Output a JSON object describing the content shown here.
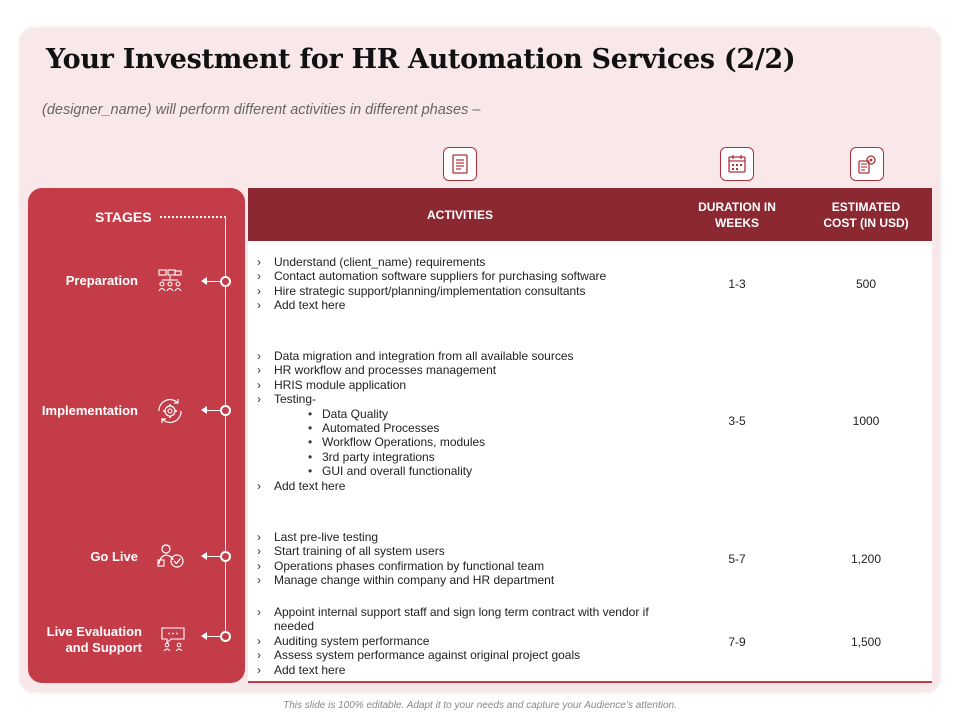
{
  "slide": {
    "title": "Your Investment for HR Automation Services (2/2)",
    "subtitle": "(designer_name) will perform different activities in different phases –",
    "footer": "This slide is 100% editable. Adapt it to your needs and capture your Audience’s attention."
  },
  "column_icons": [
    "document-icon",
    "calendar-icon",
    "cost-settings-icon"
  ],
  "stages_title": "STAGES",
  "table": {
    "headers": {
      "activities": "ACTIVITIES",
      "duration": "DURATION IN WEEKS",
      "cost": "ESTIMATED COST (IN USD)"
    },
    "rows": [
      {
        "stage": "Preparation",
        "icon": "team-network-icon",
        "activities": [
          "Understand (client_name) requirements",
          "Contact automation software suppliers for purchasing software",
          "Hire strategic support/planning/implementation consultants",
          "Add text here"
        ],
        "duration": "1-3",
        "cost": "500"
      },
      {
        "stage": "Implementation",
        "icon": "gear-cycle-icon",
        "activities": [
          "Data migration and integration from all available sources",
          "HR workflow and processes management",
          "HRIS module application",
          "Testing-"
        ],
        "sub_activities": [
          "Data Quality",
          "Automated Processes",
          "Workflow Operations, modules",
          "3rd party integrations",
          "GUI and overall functionality"
        ],
        "activities_after": [
          "Add text here"
        ],
        "duration": "3-5",
        "cost": "1000"
      },
      {
        "stage": "Go Live",
        "icon": "person-check-icon",
        "activities": [
          "Last pre-live testing",
          "Start training of all system users",
          "Operations phases confirmation by functional team",
          "Manage change within company and HR department"
        ],
        "duration": "5-7",
        "cost": "1,200"
      },
      {
        "stage": "Live Evaluation and Support",
        "stage_lines": [
          "Live Evaluation",
          "and Support"
        ],
        "icon": "support-chat-icon",
        "activities": [
          "Appoint internal support staff and sign long term contract with vendor if needed",
          "Auditing system performance",
          "Assess system performance against original project goals",
          "Add text here"
        ],
        "duration": "7-9",
        "cost": "1,500"
      }
    ]
  },
  "colors": {
    "stage_panel": "#c43c48",
    "header": "#8c2832",
    "card_bg": "#f9e8e9"
  }
}
